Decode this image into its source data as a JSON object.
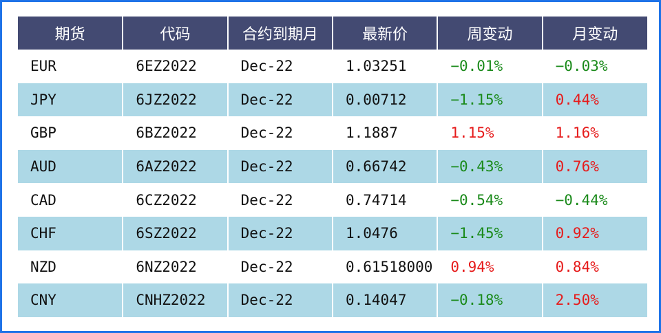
{
  "headers": [
    "期货",
    "代码",
    "合约到期月",
    "最新价",
    "周变动",
    "月变动"
  ],
  "rows": [
    {
      "currency": "EUR",
      "code": "6EZ2022",
      "expiry": "Dec-22",
      "price": "1.03251",
      "week": "−0.01%",
      "month": "−0.03%"
    },
    {
      "currency": "JPY",
      "code": "6JZ2022",
      "expiry": "Dec-22",
      "price": "0.00712",
      "week": "−1.15%",
      "month": "0.44%"
    },
    {
      "currency": "GBP",
      "code": "6BZ2022",
      "expiry": "Dec-22",
      "price": "1.1887",
      "week": "1.15%",
      "month": "1.16%"
    },
    {
      "currency": "AUD",
      "code": "6AZ2022",
      "expiry": "Dec-22",
      "price": "0.66742",
      "week": "−0.43%",
      "month": "0.76%"
    },
    {
      "currency": "CAD",
      "code": "6CZ2022",
      "expiry": "Dec-22",
      "price": "0.74714",
      "week": "−0.54%",
      "month": "−0.44%"
    },
    {
      "currency": "CHF",
      "code": "6SZ2022",
      "expiry": "Dec-22",
      "price": "1.0476",
      "week": "−1.45%",
      "month": "0.92%"
    },
    {
      "currency": "NZD",
      "code": "6NZ2022",
      "expiry": "Dec-22",
      "price": "0.61518000",
      "week": "0.94%",
      "month": "0.84%"
    },
    {
      "currency": "CNY",
      "code": "CNHZ2022",
      "expiry": "Dec-22",
      "price": "0.14047",
      "week": "−0.18%",
      "month": "2.50%"
    }
  ],
  "colors": {
    "header_bg": "#434a72",
    "header_text": "#ffffff",
    "alt_row_bg": "#add8e6",
    "positive": "#e61b1b",
    "negative": "#1a8a1a",
    "frame_border": "#1f73e8"
  }
}
